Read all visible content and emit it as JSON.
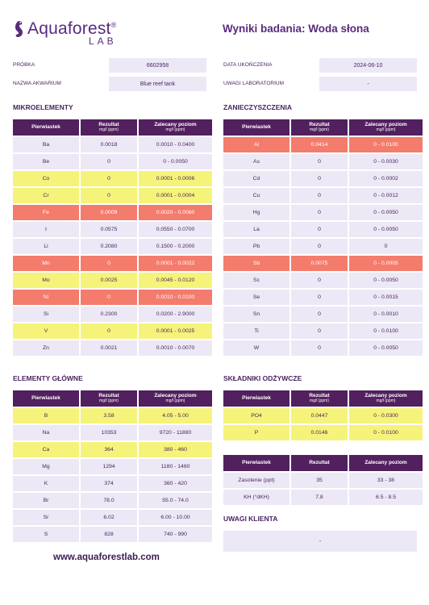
{
  "header": {
    "logo_name": "Aquaforest",
    "logo_reg": "®",
    "logo_lab": "LAB",
    "title": "Wyniki badania: Woda słona"
  },
  "meta": {
    "sample_label": "PRÓBKA",
    "sample_value": "6602958",
    "aquarium_label": "NAZWA AKWARIUM",
    "aquarium_value": "Blue reef tank",
    "date_label": "DATA UKOŃCZENIA",
    "date_value": "2024-06-10",
    "lab_notes_label": "UWAGI LABORATORIUM",
    "lab_notes_value": "-"
  },
  "columns": {
    "element": "Pierwiastek",
    "result": "Rezultat",
    "unit": "mg/l (ppm)",
    "range": "Zalecany poziom"
  },
  "micro": {
    "title": "MIKROELEMENTY",
    "rows": [
      {
        "el": "Ba",
        "res": "0.0018",
        "range": "0.0010 - 0.0400",
        "status": "ok"
      },
      {
        "el": "Be",
        "res": "0",
        "range": "0 - 0.0050",
        "status": "ok"
      },
      {
        "el": "Co",
        "res": "0",
        "range": "0.0001 - 0.0006",
        "status": "warn"
      },
      {
        "el": "Cr",
        "res": "0",
        "range": "0.0001 - 0.0004",
        "status": "warn"
      },
      {
        "el": "Fe",
        "res": "0.0009",
        "range": "0.0020 - 0.0060",
        "status": "bad"
      },
      {
        "el": "I",
        "res": "0.0575",
        "range": "0.0550 - 0.0700",
        "status": "ok"
      },
      {
        "el": "Li",
        "res": "0.2080",
        "range": "0.1500 - 0.2000",
        "status": "ok"
      },
      {
        "el": "Mn",
        "res": "0",
        "range": "0.0001 - 0.0022",
        "status": "bad"
      },
      {
        "el": "Mo",
        "res": "0.0025",
        "range": "0.0045 - 0.0120",
        "status": "warn"
      },
      {
        "el": "Ni",
        "res": "0",
        "range": "0.0010 - 0.0100",
        "status": "bad"
      },
      {
        "el": "Si",
        "res": "0.2300",
        "range": "0.0200 - 2.9000",
        "status": "ok"
      },
      {
        "el": "V",
        "res": "0",
        "range": "0.0001 - 0.0025",
        "status": "warn"
      },
      {
        "el": "Zn",
        "res": "0.0021",
        "range": "0.0010 - 0.0070",
        "status": "ok"
      }
    ]
  },
  "pollution": {
    "title": "ZANIECZYSZCZENIA",
    "rows": [
      {
        "el": "Al",
        "res": "0.0414",
        "range": "0 - 0.0100",
        "status": "bad"
      },
      {
        "el": "As",
        "res": "0",
        "range": "0 - 0.0030",
        "status": "ok"
      },
      {
        "el": "Cd",
        "res": "0",
        "range": "0 - 0.0002",
        "status": "ok"
      },
      {
        "el": "Cu",
        "res": "0",
        "range": "0 - 0.0012",
        "status": "ok"
      },
      {
        "el": "Hg",
        "res": "0",
        "range": "0 - 0.0050",
        "status": "ok"
      },
      {
        "el": "La",
        "res": "0",
        "range": "0 - 0.0050",
        "status": "ok"
      },
      {
        "el": "Pb",
        "res": "0",
        "range": "0",
        "status": "ok"
      },
      {
        "el": "Sb",
        "res": "0.0075",
        "range": "0 - 0.0005",
        "status": "bad"
      },
      {
        "el": "Sc",
        "res": "0",
        "range": "0 - 0.0050",
        "status": "ok"
      },
      {
        "el": "Se",
        "res": "0",
        "range": "0 - 0.0015",
        "status": "ok"
      },
      {
        "el": "Sn",
        "res": "0",
        "range": "0 - 0.0010",
        "status": "ok"
      },
      {
        "el": "Ti",
        "res": "0",
        "range": "0 - 0.0100",
        "status": "ok"
      },
      {
        "el": "W",
        "res": "0",
        "range": "0 - 0.0050",
        "status": "ok"
      }
    ]
  },
  "major": {
    "title": "ELEMENTY GŁÓWNE",
    "rows": [
      {
        "el": "B",
        "res": "3.58",
        "range": "4.05 - 5.00",
        "status": "warn"
      },
      {
        "el": "Na",
        "res": "10353",
        "range": "9720 - 11880",
        "status": "ok"
      },
      {
        "el": "Ca",
        "res": "364",
        "range": "380 - 460",
        "status": "warn"
      },
      {
        "el": "Mg",
        "res": "1294",
        "range": "1180 - 1460",
        "status": "ok"
      },
      {
        "el": "K",
        "res": "374",
        "range": "360 - 420",
        "status": "ok"
      },
      {
        "el": "Br",
        "res": "78.0",
        "range": "55.0 - 74.0",
        "status": "ok"
      },
      {
        "el": "Sr",
        "res": "6.02",
        "range": "6.00 - 10.00",
        "status": "ok"
      },
      {
        "el": "S",
        "res": "828",
        "range": "740 - 990",
        "status": "ok"
      }
    ]
  },
  "nutrients": {
    "title": "SKŁADNIKI ODŻYWCZE",
    "rows": [
      {
        "el": "PO4",
        "res": "0.0447",
        "range": "0 - 0.0300",
        "status": "warn"
      },
      {
        "el": "P",
        "res": "0.0146",
        "range": "0 - 0.0100",
        "status": "warn"
      }
    ]
  },
  "extra": {
    "col_element": "Pierwiastek",
    "col_result": "Rezultat",
    "col_range": "Zalecany poziom",
    "rows": [
      {
        "el": "Zasolenie (ppt)",
        "res": "35",
        "range": "33 - 38",
        "status": "ok"
      },
      {
        "el": "KH (°dKH)",
        "res": "7.8",
        "range": "6.5 - 8.5",
        "status": "ok"
      }
    ]
  },
  "client": {
    "title": "UWAGI KLIENTA",
    "value": "-"
  },
  "footer": {
    "website": "www.aquaforestlab.com"
  },
  "colors": {
    "accent": "#52205f",
    "ok": "#ece8f6",
    "warn": "#f6f37a",
    "bad": "#f47c6c"
  }
}
